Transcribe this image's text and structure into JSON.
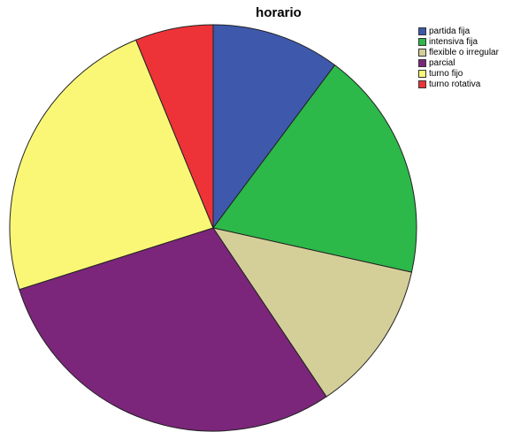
{
  "chart_data": {
    "type": "pie",
    "title": "horario",
    "legend_position": "top-right",
    "slices": [
      {
        "label": "partida fija",
        "value": 10.2,
        "color": "#3E58AC"
      },
      {
        "label": "intensiva fija",
        "value": 18.3,
        "color": "#2DB84A"
      },
      {
        "label": "flexible o irregular",
        "value": 12.1,
        "color": "#D4CF99"
      },
      {
        "label": "parcial",
        "value": 29.5,
        "color": "#7B267B"
      },
      {
        "label": "turno fijo",
        "value": 23.7,
        "color": "#FAF777"
      },
      {
        "label": "turno rotativa",
        "value": 6.2,
        "color": "#EE3338"
      }
    ]
  }
}
